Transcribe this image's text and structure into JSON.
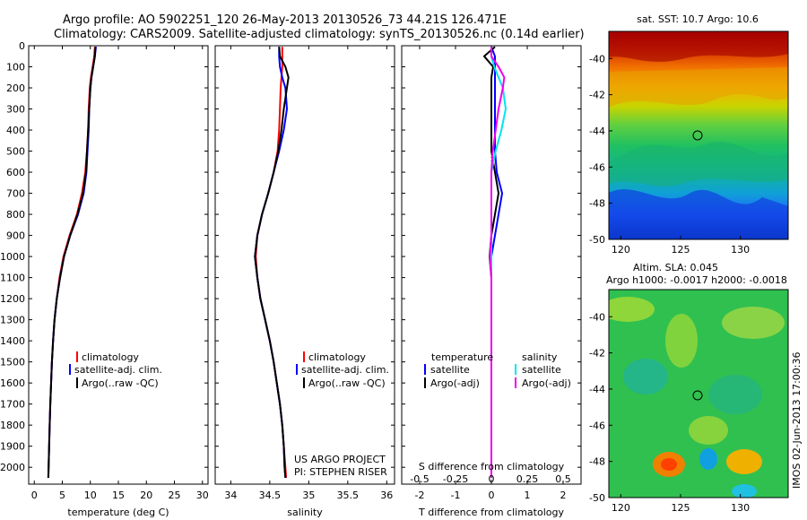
{
  "header": {
    "line1": "Argo profile: AO 5902251_120 26-May-2013 20130526_73 44.21S 126.471E",
    "line2": "Climatology: CARS2009. Satellite-adjusted climatology: synTS_20130526.nc (0.14d earlier)"
  },
  "credits": {
    "project": "US ARGO PROJECT",
    "pi": "PI: STEPHEN RISER",
    "stamp": "IMOS 02-Jun-2013 17:00:36"
  },
  "colors": {
    "climatology": "#ff0000",
    "satellite": "#0000ff",
    "argo": "#000000",
    "salinity_satellite": "#00e5ee",
    "salinity_argo": "#ee00ee"
  },
  "chart_data": [
    {
      "type": "line",
      "id": "temperature",
      "xlabel": "temperature (deg C)",
      "ylabel": "",
      "xlim": [
        -1,
        31
      ],
      "ylim": [
        2080,
        0
      ],
      "xticks": [
        "0",
        "5",
        "10",
        "15",
        "20",
        "25",
        "30"
      ],
      "yticks": [
        "0",
        "100",
        "200",
        "300",
        "400",
        "500",
        "600",
        "700",
        "800",
        "900",
        "1000",
        "1100",
        "1200",
        "1300",
        "1400",
        "1500",
        "1600",
        "1700",
        "1800",
        "1900",
        "2000"
      ],
      "legend": [
        "climatology",
        "satellite-adj. clim.",
        "Argo(..raw -QC)"
      ],
      "legend_position": "lower-right",
      "depth": [
        5,
        50,
        100,
        150,
        200,
        300,
        400,
        500,
        600,
        700,
        800,
        900,
        1000,
        1100,
        1200,
        1300,
        1400,
        1500,
        1600,
        1700,
        1800,
        1900,
        2000,
        2050
      ],
      "series": [
        {
          "name": "climatology",
          "values": [
            10.8,
            10.7,
            10.4,
            10.1,
            9.9,
            9.7,
            9.6,
            9.4,
            9.1,
            8.5,
            7.6,
            6.3,
            5.2,
            4.5,
            4.0,
            3.6,
            3.35,
            3.15,
            3.0,
            2.85,
            2.75,
            2.65,
            2.55,
            2.5
          ]
        },
        {
          "name": "satellite-adj. clim.",
          "values": [
            11.0,
            10.8,
            10.5,
            10.2,
            10.0,
            9.8,
            9.7,
            9.5,
            9.3,
            8.8,
            7.8,
            6.4,
            5.3,
            4.6,
            4.0,
            3.6,
            3.35,
            3.15,
            3.0,
            2.85,
            2.75,
            2.65,
            2.55,
            2.5
          ]
        },
        {
          "name": "Argo(..raw -QC)",
          "values": [
            10.9,
            10.8,
            10.5,
            10.2,
            10.0,
            9.8,
            9.6,
            9.4,
            9.2,
            8.7,
            7.7,
            6.4,
            5.3,
            4.6,
            4.0,
            3.6,
            3.35,
            3.15,
            3.0,
            2.85,
            2.75,
            2.65,
            2.55,
            2.5
          ]
        }
      ]
    },
    {
      "type": "line",
      "id": "salinity",
      "xlabel": "salinity",
      "xlim": [
        33.8,
        36.1
      ],
      "ylim": [
        2080,
        0
      ],
      "xticks": [
        "34",
        "34.5",
        "35",
        "35.5",
        "36"
      ],
      "legend": [
        "climatology",
        "satellite-adj. clim.",
        "Argo(..raw -QC)"
      ],
      "legend_position": "lower-right",
      "depth": [
        5,
        50,
        100,
        150,
        200,
        300,
        400,
        500,
        600,
        700,
        800,
        900,
        1000,
        1100,
        1200,
        1300,
        1400,
        1500,
        1600,
        1700,
        1800,
        1900,
        2000,
        2050
      ],
      "series": [
        {
          "name": "climatology",
          "values": [
            34.66,
            34.66,
            34.66,
            34.65,
            34.64,
            34.63,
            34.62,
            34.6,
            34.55,
            34.48,
            34.4,
            34.34,
            34.32,
            34.34,
            34.38,
            34.44,
            34.5,
            34.55,
            34.59,
            34.63,
            34.66,
            34.68,
            34.7,
            34.71
          ]
        },
        {
          "name": "satellite-adj. clim.",
          "values": [
            34.62,
            34.62,
            34.63,
            34.66,
            34.7,
            34.72,
            34.68,
            34.62,
            34.55,
            34.48,
            34.4,
            34.34,
            34.31,
            34.34,
            34.38,
            34.44,
            34.5,
            34.55,
            34.59,
            34.63,
            34.66,
            34.68,
            34.69,
            34.7
          ]
        },
        {
          "name": "Argo(..raw -QC)",
          "values": [
            34.62,
            34.63,
            34.7,
            34.74,
            34.72,
            34.68,
            34.65,
            34.61,
            34.55,
            34.48,
            34.4,
            34.34,
            34.31,
            34.34,
            34.38,
            34.44,
            34.5,
            34.55,
            34.59,
            34.63,
            34.66,
            34.68,
            34.69,
            34.7
          ]
        }
      ]
    },
    {
      "type": "line",
      "id": "difference",
      "xlabel": "T difference from climatology",
      "xlabel_top": "S difference from climatology",
      "xlim": [
        -2.5,
        2.5
      ],
      "ylim": [
        2080,
        0
      ],
      "xticks": [
        "-2",
        "-1",
        "0",
        "1",
        "2"
      ],
      "xticks_top": [
        "-0.5",
        "-0.25",
        "0",
        "0.25",
        "0.5"
      ],
      "legend_temperature_title": "temperature",
      "legend_salinity_title": "salinity",
      "legend_temperature": [
        "satellite",
        "Argo(-adj)"
      ],
      "legend_salinity": [
        "satellite",
        "Argo(-adj)"
      ],
      "legend_position": "lower-center",
      "depth": [
        5,
        50,
        100,
        150,
        200,
        300,
        400,
        500,
        600,
        700,
        800,
        900,
        1000,
        1100,
        1200,
        1300,
        1400,
        1500,
        1600,
        1700,
        1800,
        1900,
        2000,
        2050
      ],
      "series": [
        {
          "name": "temperature satellite",
          "values": [
            0.0,
            0.1,
            0.1,
            0.1,
            0.1,
            0.1,
            0.1,
            0.1,
            0.15,
            0.3,
            0.2,
            0.1,
            0.0,
            0.0,
            0.0,
            0.0,
            0.0,
            0.0,
            0.0,
            0.0,
            0.0,
            0.0,
            0.0,
            0.0
          ]
        },
        {
          "name": "temperature Argo(-adj)",
          "values": [
            0.1,
            -0.2,
            0.05,
            0.0,
            0.0,
            0.0,
            0.0,
            0.0,
            0.1,
            0.2,
            0.1,
            0.0,
            -0.05,
            0.0,
            0.0,
            0.0,
            0.0,
            0.0,
            0.0,
            0.0,
            0.0,
            0.0,
            0.0,
            0.0
          ]
        },
        {
          "name": "salinity satellite",
          "values": [
            0.0,
            0.0,
            0.02,
            0.05,
            0.08,
            0.1,
            0.07,
            0.03,
            0.0,
            0.0,
            0.0,
            0.0,
            0.0,
            0.0,
            0.0,
            0.0,
            0.0,
            0.0,
            0.0,
            0.0,
            0.0,
            0.0,
            0.0,
            0.0
          ]
        },
        {
          "name": "salinity Argo(-adj)",
          "values": [
            0.0,
            0.0,
            0.05,
            0.09,
            0.08,
            0.05,
            0.03,
            0.01,
            0.0,
            0.0,
            0.0,
            0.0,
            -0.01,
            0.0,
            0.0,
            0.0,
            0.0,
            0.0,
            0.0,
            0.0,
            0.0,
            0.0,
            0.0,
            0.0
          ]
        }
      ]
    },
    {
      "type": "heatmap",
      "id": "sst_map",
      "title": "sat. SST: 10.7  Argo: 10.6",
      "xlim": [
        119,
        134
      ],
      "ylim": [
        -50,
        -38.5
      ],
      "xticks": [
        "120",
        "125",
        "130"
      ],
      "yticks": [
        "-40",
        "-42",
        "-44",
        "-46",
        "-48",
        "-50"
      ],
      "marker": {
        "lon": 126.47,
        "lat": -44.21
      }
    },
    {
      "type": "heatmap",
      "id": "sla_map",
      "title": "Altim. SLA: 0.045",
      "subtitle": "Argo h1000: -0.0017  h2000: -0.0018",
      "xlim": [
        119,
        134
      ],
      "ylim": [
        -50,
        -38.5
      ],
      "xticks": [
        "120",
        "125",
        "130"
      ],
      "yticks": [
        "-40",
        "-42",
        "-44",
        "-46",
        "-48",
        "-50"
      ],
      "marker": {
        "lon": 126.47,
        "lat": -44.21
      }
    }
  ]
}
